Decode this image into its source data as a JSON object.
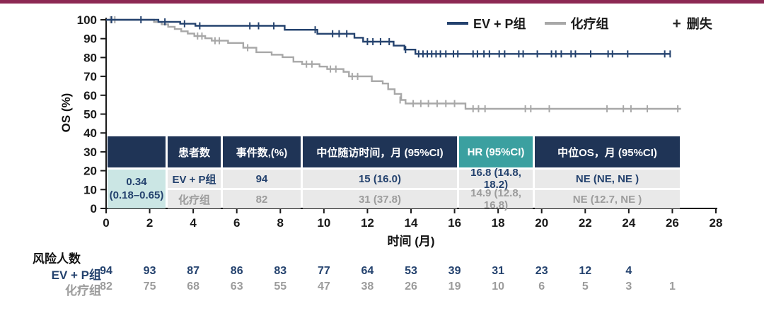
{
  "colors": {
    "accent_bar": "#8C2853",
    "navy": "#24426E",
    "table_header_navy": "#1F3456",
    "teal": "#3BA0A0",
    "teal_light": "#CBE6E4",
    "row_bg": "#E9E9E9",
    "gray_series": "#A8A8A8",
    "gray_text": "#9C9C9C",
    "axis": "#1a1a1a"
  },
  "legend": {
    "items": [
      {
        "label": "EV + P组",
        "color": "#24426E"
      },
      {
        "label": "化疗组",
        "color": "#A8A8A8"
      }
    ],
    "censor_symbol": "+",
    "censor_label": "删失"
  },
  "chart_data": {
    "type": "line",
    "subtype": "kaplan-meier-step",
    "title": "",
    "xlabel": "时间 (月)",
    "ylabel": "OS (%)",
    "xlim": [
      0,
      28
    ],
    "ylim": [
      0,
      100
    ],
    "xticks": [
      0,
      2,
      4,
      6,
      8,
      10,
      12,
      14,
      16,
      18,
      20,
      22,
      24,
      26,
      28
    ],
    "yticks": [
      0,
      10,
      20,
      30,
      40,
      50,
      60,
      70,
      80,
      90,
      100
    ],
    "grid": false,
    "legend_position": "top-right",
    "series": [
      {
        "name": "化疗组",
        "color": "#A8A8A8",
        "steps": [
          [
            0,
            100
          ],
          [
            2.2,
            98.8
          ],
          [
            2.55,
            97.6
          ],
          [
            2.85,
            96.3
          ],
          [
            3.15,
            95.1
          ],
          [
            3.45,
            93.9
          ],
          [
            3.75,
            92.7
          ],
          [
            4.05,
            91.4
          ],
          [
            4.55,
            90.2
          ],
          [
            4.85,
            88.9
          ],
          [
            5.6,
            87.7
          ],
          [
            6.3,
            85.2
          ],
          [
            6.9,
            82.8
          ],
          [
            7.6,
            81.5
          ],
          [
            8.1,
            80.2
          ],
          [
            8.6,
            77.8
          ],
          [
            9.0,
            76.5
          ],
          [
            9.8,
            75.2
          ],
          [
            10.15,
            73.9
          ],
          [
            10.9,
            72.4
          ],
          [
            11.15,
            70.0
          ],
          [
            12.2,
            67.5
          ],
          [
            12.7,
            66.2
          ],
          [
            12.95,
            63.2
          ],
          [
            13.25,
            60.7
          ],
          [
            13.55,
            57.5
          ],
          [
            13.75,
            55.6
          ],
          [
            16.5,
            52.8
          ],
          [
            26.4,
            52.8
          ]
        ],
        "censors": [
          [
            0.2,
            100
          ],
          [
            0.4,
            100
          ],
          [
            4.2,
            91.4
          ],
          [
            4.4,
            91.4
          ],
          [
            5.0,
            88.9
          ],
          [
            5.2,
            88.9
          ],
          [
            6.5,
            85.2
          ],
          [
            9.2,
            76.5
          ],
          [
            9.45,
            76.5
          ],
          [
            10.3,
            73.9
          ],
          [
            10.55,
            73.9
          ],
          [
            11.3,
            70.0
          ],
          [
            11.55,
            70.0
          ],
          [
            13.5,
            57.5
          ],
          [
            14.1,
            55.6
          ],
          [
            14.45,
            55.6
          ],
          [
            14.8,
            55.6
          ],
          [
            15.2,
            55.6
          ],
          [
            15.6,
            55.6
          ],
          [
            16.0,
            55.6
          ],
          [
            16.85,
            52.8
          ],
          [
            17.1,
            52.8
          ],
          [
            17.4,
            52.8
          ],
          [
            19.25,
            52.8
          ],
          [
            19.5,
            52.8
          ],
          [
            20.35,
            52.8
          ],
          [
            23.0,
            52.8
          ],
          [
            23.75,
            52.8
          ],
          [
            24.1,
            52.8
          ],
          [
            24.85,
            52.8
          ],
          [
            26.25,
            52.8
          ]
        ]
      },
      {
        "name": "EV + P组",
        "color": "#24426E",
        "steps": [
          [
            0,
            100
          ],
          [
            2.4,
            98.9
          ],
          [
            3.4,
            97.9
          ],
          [
            4.1,
            96.8
          ],
          [
            8.2,
            94.7
          ],
          [
            9.7,
            92.6
          ],
          [
            11.4,
            90.5
          ],
          [
            11.8,
            88.4
          ],
          [
            13.2,
            86.3
          ],
          [
            13.7,
            84.2
          ],
          [
            14.2,
            81.9
          ],
          [
            25.9,
            81.9
          ]
        ],
        "censors": [
          [
            0.25,
            100
          ],
          [
            1.6,
            100
          ],
          [
            2.7,
            98.9
          ],
          [
            3.6,
            97.9
          ],
          [
            4.3,
            96.8
          ],
          [
            6.6,
            96.8
          ],
          [
            7.0,
            96.8
          ],
          [
            7.7,
            96.8
          ],
          [
            9.6,
            94.7
          ],
          [
            10.4,
            92.6
          ],
          [
            10.7,
            92.6
          ],
          [
            11.05,
            92.6
          ],
          [
            12.0,
            88.4
          ],
          [
            12.25,
            88.4
          ],
          [
            12.6,
            88.4
          ],
          [
            13.0,
            88.4
          ],
          [
            13.75,
            84.2
          ],
          [
            14.35,
            81.9
          ],
          [
            14.55,
            81.9
          ],
          [
            14.75,
            81.9
          ],
          [
            14.95,
            81.9
          ],
          [
            15.15,
            81.9
          ],
          [
            15.35,
            81.9
          ],
          [
            15.6,
            81.9
          ],
          [
            15.95,
            81.9
          ],
          [
            16.15,
            81.9
          ],
          [
            16.85,
            81.9
          ],
          [
            17.05,
            81.9
          ],
          [
            17.35,
            81.9
          ],
          [
            17.6,
            81.9
          ],
          [
            18.05,
            81.9
          ],
          [
            18.3,
            81.9
          ],
          [
            18.95,
            81.9
          ],
          [
            19.15,
            81.9
          ],
          [
            19.8,
            81.9
          ],
          [
            20.45,
            81.9
          ],
          [
            20.65,
            81.9
          ],
          [
            20.9,
            81.9
          ],
          [
            21.35,
            81.9
          ],
          [
            21.55,
            81.9
          ],
          [
            22.25,
            81.9
          ],
          [
            23.05,
            81.9
          ],
          [
            23.25,
            81.9
          ],
          [
            23.95,
            81.9
          ],
          [
            25.65,
            81.9
          ],
          [
            25.9,
            81.9
          ]
        ]
      }
    ]
  },
  "stats_table": {
    "headers": [
      "",
      "患者数",
      "事件数,(%)",
      "中位随访时间，月 (95%CI)",
      "HR (95%CI)",
      "中位OS，月 (95%CI)"
    ],
    "rows": [
      {
        "label": "EV + P组",
        "patients": "94",
        "events": "15 (16.0)",
        "followup": "16.8 (14.8, 18.2)",
        "median_os": "NE (NE, NE )"
      },
      {
        "label": "化疗组",
        "patients": "82",
        "events": "31 (37.8)",
        "followup": "14.9 (12.8, 16.8)",
        "median_os": "NE (12.7, NE )"
      }
    ],
    "hr_value": "0.34",
    "hr_ci": "(0.18–0.65)"
  },
  "risk_table": {
    "title": "风险人数",
    "months": [
      0,
      2,
      4,
      6,
      8,
      10,
      12,
      14,
      16,
      18,
      20,
      22,
      24,
      26,
      28
    ],
    "rows": [
      {
        "label": "EV + P组",
        "color": "#24426E",
        "counts": [
          "94",
          "93",
          "87",
          "86",
          "83",
          "77",
          "64",
          "53",
          "39",
          "31",
          "23",
          "12",
          "4",
          "",
          ""
        ]
      },
      {
        "label": "化疗组",
        "color": "#9C9C9C",
        "counts": [
          "82",
          "75",
          "68",
          "63",
          "55",
          "47",
          "38",
          "26",
          "19",
          "10",
          "6",
          "5",
          "3",
          "1",
          ""
        ]
      }
    ]
  }
}
